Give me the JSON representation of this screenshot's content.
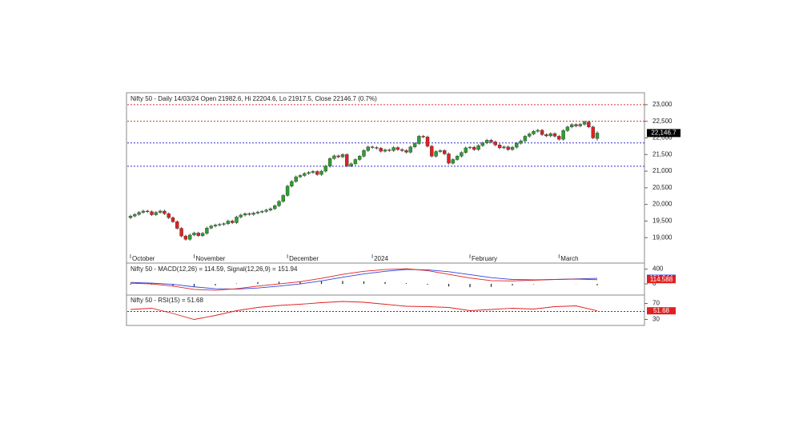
{
  "chart_data": [
    {
      "type": "candlestick",
      "title": "Nifty 50 - Daily 14/03/24 Open 21982.6, Hi 22204.6, Lo 21917.5, Close 22146.7 (0.7%)",
      "categories": [
        "October",
        null,
        null,
        null,
        null,
        null,
        null,
        null,
        null,
        null,
        null,
        null,
        null,
        null,
        null,
        "November",
        null,
        null,
        null,
        null,
        null,
        null,
        null,
        null,
        null,
        null,
        null,
        null,
        null,
        null,
        null,
        null,
        null,
        null,
        null,
        null,
        null,
        "December",
        null,
        null,
        null,
        null,
        null,
        null,
        null,
        null,
        null,
        null,
        null,
        null,
        null,
        null,
        null,
        null,
        null,
        null,
        null,
        "2024",
        null,
        null,
        null,
        null,
        null,
        null,
        null,
        null,
        null,
        null,
        null,
        null,
        null,
        null,
        null,
        null,
        null,
        null,
        null,
        null,
        null,
        null,
        "February",
        null,
        null,
        null,
        null,
        null,
        null,
        null,
        null,
        null,
        null,
        null,
        null,
        null,
        null,
        null,
        null,
        null,
        null,
        null,
        null,
        "March",
        null,
        null,
        null,
        null,
        null,
        null,
        null,
        null,
        null
      ],
      "open": [
        19600,
        19650,
        19700,
        19760,
        19800,
        19780,
        19690,
        19760,
        19800,
        19720,
        19600,
        19480,
        19280,
        19050,
        18950,
        19080,
        19140,
        19060,
        19130,
        19290,
        19350,
        19380,
        19400,
        19420,
        19500,
        19450,
        19620,
        19680,
        19720,
        19700,
        19740,
        19770,
        19790,
        19830,
        19870,
        19960,
        20090,
        20270,
        20550,
        20690,
        20830,
        20870,
        20930,
        20960,
        20990,
        20900,
        21000,
        21150,
        21380,
        21460,
        21430,
        21500,
        21160,
        21220,
        21350,
        21450,
        21620,
        21730,
        21710,
        21690,
        21600,
        21640,
        21620,
        21710,
        21650,
        21620,
        21570,
        21730,
        21830,
        22050,
        22030,
        21750,
        21450,
        21590,
        21620,
        21520,
        21240,
        21350,
        21450,
        21560,
        21700,
        21720,
        21650,
        21770,
        21850,
        21930,
        21880,
        21790,
        21700,
        21730,
        21650,
        21720,
        21840,
        21910,
        22050,
        22120,
        22200,
        22230,
        22100,
        22060,
        22130,
        22050,
        21960,
        22220,
        22330,
        22400,
        22360,
        22410,
        22480,
        22330,
        21982.6
      ],
      "high": [
        19690,
        19740,
        19800,
        19840,
        19840,
        19820,
        19800,
        19840,
        19840,
        19760,
        19640,
        19520,
        19320,
        19090,
        19120,
        19180,
        19180,
        19170,
        19330,
        19390,
        19420,
        19440,
        19460,
        19540,
        19540,
        19660,
        19720,
        19760,
        19760,
        19780,
        19810,
        19830,
        19870,
        19910,
        20000,
        20130,
        20310,
        20590,
        20730,
        20870,
        20910,
        20970,
        21000,
        21030,
        21030,
        21040,
        21190,
        21420,
        21500,
        21500,
        21540,
        21540,
        21260,
        21390,
        21490,
        21660,
        21770,
        21770,
        21750,
        21730,
        21680,
        21680,
        21750,
        21750,
        21690,
        21660,
        21770,
        21870,
        22090,
        22090,
        22070,
        21790,
        21630,
        21660,
        21660,
        21560,
        21390,
        21490,
        21600,
        21740,
        21760,
        21760,
        21810,
        21890,
        21970,
        21970,
        21920,
        21830,
        21770,
        21770,
        21760,
        21880,
        21950,
        22090,
        22160,
        22240,
        22270,
        22270,
        22140,
        22170,
        22170,
        22090,
        22260,
        22370,
        22440,
        22440,
        22450,
        22520,
        22520,
        22370,
        22204.6
      ],
      "low": [
        19560,
        19610,
        19660,
        19720,
        19740,
        19650,
        19650,
        19720,
        19680,
        19560,
        19440,
        19240,
        19010,
        18910,
        18910,
        19040,
        19020,
        19020,
        19090,
        19250,
        19310,
        19340,
        19360,
        19380,
        19410,
        19410,
        19580,
        19640,
        19660,
        19660,
        19700,
        19730,
        19750,
        19790,
        19830,
        19920,
        20050,
        20230,
        20510,
        20650,
        20790,
        20830,
        20890,
        20920,
        20860,
        20860,
        20960,
        21110,
        21340,
        21390,
        21390,
        21120,
        21120,
        21180,
        21310,
        21410,
        21580,
        21670,
        21650,
        21560,
        21560,
        21580,
        21580,
        21610,
        21580,
        21530,
        21530,
        21690,
        21790,
        21990,
        21710,
        21410,
        21410,
        21550,
        21480,
        21200,
        21200,
        21310,
        21410,
        21520,
        21660,
        21610,
        21610,
        21730,
        21810,
        21840,
        21750,
        21660,
        21660,
        21610,
        21610,
        21680,
        21800,
        21870,
        22010,
        22080,
        22160,
        22060,
        22020,
        22020,
        22010,
        21920,
        21920,
        22180,
        22290,
        22320,
        22320,
        22370,
        22290,
        21960,
        21917.5
      ],
      "close": [
        19650,
        19700,
        19760,
        19800,
        19780,
        19690,
        19760,
        19800,
        19720,
        19600,
        19480,
        19280,
        19050,
        18950,
        19080,
        19140,
        19060,
        19130,
        19290,
        19350,
        19380,
        19400,
        19420,
        19500,
        19450,
        19620,
        19680,
        19720,
        19700,
        19740,
        19770,
        19790,
        19830,
        19870,
        19960,
        20090,
        20270,
        20550,
        20690,
        20830,
        20870,
        20930,
        20960,
        20990,
        20900,
        21000,
        21150,
        21380,
        21460,
        21430,
        21500,
        21160,
        21220,
        21350,
        21450,
        21620,
        21730,
        21710,
        21690,
        21600,
        21640,
        21620,
        21710,
        21650,
        21620,
        21570,
        21730,
        21830,
        22050,
        22030,
        21750,
        21450,
        21590,
        21620,
        21520,
        21240,
        21350,
        21450,
        21560,
        21700,
        21720,
        21650,
        21770,
        21850,
        21930,
        21880,
        21790,
        21700,
        21730,
        21650,
        21720,
        21840,
        21910,
        22050,
        22120,
        22200,
        22230,
        22100,
        22060,
        22130,
        22050,
        21960,
        22220,
        22330,
        22400,
        22360,
        22410,
        22480,
        22330,
        22000,
        22146.7
      ],
      "up_color": "#2e9e2e",
      "down_color": "#e02020",
      "ylim": [
        18500,
        23310
      ],
      "yticks": [
        {
          "value": 19000,
          "label": "19,000"
        },
        {
          "value": 19500,
          "label": "19,500"
        },
        {
          "value": 20000,
          "label": "20,000"
        },
        {
          "value": 20500,
          "label": "20,500"
        },
        {
          "value": 21000,
          "label": "21,000"
        },
        {
          "value": 21500,
          "label": "21,500"
        },
        {
          "value": 22000,
          "label": "22,000"
        },
        {
          "value": 22500,
          "label": "22,500"
        },
        {
          "value": 23000,
          "label": "23,000"
        }
      ],
      "hlines": [
        {
          "value": 23000,
          "color": "#e03030"
        },
        {
          "value": 22500,
          "color": "#e03030"
        },
        {
          "value": 21850,
          "color": "#3030d0"
        },
        {
          "value": 21150,
          "color": "#3030d0"
        }
      ],
      "last_price": {
        "value": 22146.7,
        "label": "22,146.7"
      }
    },
    {
      "type": "line",
      "title": "Nifty 50 - MACD(12,26) = 114.59, Signal(12,26,9) = 151.94",
      "x": [
        0,
        5,
        10,
        15,
        20,
        25,
        30,
        35,
        40,
        45,
        50,
        55,
        60,
        65,
        70,
        75,
        80,
        85,
        90,
        95,
        100,
        105,
        110
      ],
      "series": [
        {
          "kind": "bar",
          "color": "#222222",
          "values": [
            -20,
            -20,
            -50,
            -70,
            -40,
            10,
            50,
            60,
            60,
            70,
            80,
            70,
            50,
            20,
            -20,
            -70,
            -90,
            -80,
            -40,
            -10,
            0,
            -5,
            -37.35
          ]
        },
        {
          "color": "#3344dd",
          "values": [
            40,
            20,
            -10,
            -80,
            -130,
            -140,
            -110,
            -60,
            0,
            80,
            180,
            270,
            340,
            390,
            380,
            330,
            250,
            170,
            120,
            110,
            120,
            135,
            151.944
          ]
        },
        {
          "color": "#e02020",
          "values": [
            20,
            0,
            -60,
            -150,
            -170,
            -130,
            -60,
            0,
            60,
            150,
            260,
            340,
            390,
            410,
            360,
            260,
            160,
            90,
            80,
            100,
            120,
            130,
            114.588
          ]
        }
      ],
      "ylim": [
        -280,
        520
      ],
      "yticks": [
        0,
        400
      ]
    },
    {
      "type": "line",
      "title": "Nifty 50 - RSI(15) = 51.68",
      "x": [
        0,
        5,
        10,
        15,
        20,
        25,
        30,
        35,
        40,
        45,
        50,
        55,
        60,
        65,
        70,
        75,
        80,
        85,
        90,
        95,
        100,
        105,
        110
      ],
      "series": [
        {
          "color": "#e02020",
          "values": [
            55,
            58,
            45,
            30,
            40,
            52,
            60,
            65,
            68,
            72,
            75,
            73,
            68,
            63,
            62,
            60,
            52,
            55,
            58,
            56,
            62,
            64,
            51.68
          ]
        }
      ],
      "ylim": [
        17,
        89
      ],
      "yticks": [
        30,
        70
      ],
      "hlines": [
        {
          "value": 50,
          "color": "#3030d0"
        }
      ]
    }
  ]
}
